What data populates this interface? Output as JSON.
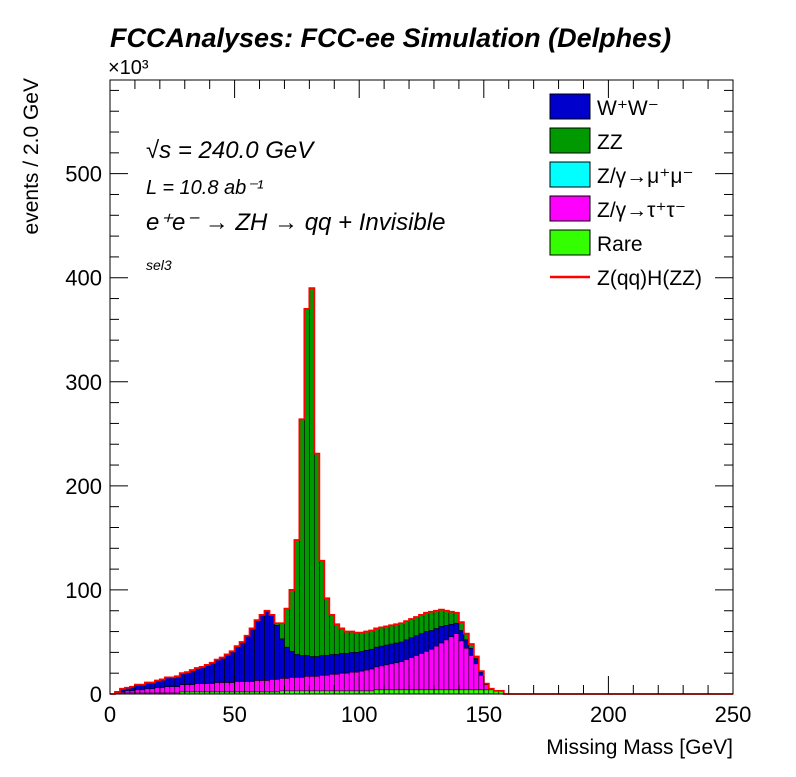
{
  "chart_data": {
    "type": "area",
    "title": "FCCAnalyses: FCC-ee Simulation (Delphes)",
    "xlabel": "Missing Mass [GeV]",
    "ylabel": "events / 2.0 GeV",
    "y_multiplier": "×10³",
    "xlim": [
      0,
      250
    ],
    "ylim": [
      0,
      590
    ],
    "x_ticks": [
      0,
      50,
      100,
      150,
      200,
      250
    ],
    "y_ticks": [
      0,
      100,
      200,
      300,
      400,
      500
    ],
    "grid": false,
    "legend_position": "top-right",
    "annotations": {
      "energy": "√s = 240.0 GeV",
      "lumi": "L = 10.8 ab⁻¹",
      "process": "e⁺e⁻ → ZH → qq + Invisible",
      "selection": "sel3"
    },
    "bin_width": 2,
    "bin_edges_start": 0,
    "series": [
      {
        "name": "Rare",
        "color": "#33ff00",
        "values": [
          0,
          0,
          1,
          1,
          1,
          1,
          1,
          1,
          1,
          1,
          1,
          1,
          1,
          1,
          2,
          2,
          2,
          2,
          2,
          2,
          2,
          2,
          2,
          2,
          2,
          2,
          2,
          2,
          2,
          2,
          2,
          2,
          2,
          2,
          3,
          3,
          3,
          3,
          3,
          3,
          3,
          3,
          3,
          3,
          3,
          3,
          3,
          3,
          3,
          3,
          3,
          3,
          3,
          4,
          4,
          4,
          4,
          4,
          4,
          4,
          4,
          4,
          4,
          4,
          4,
          4,
          4,
          4,
          4,
          4,
          4,
          4,
          4,
          4,
          4,
          4,
          4,
          3,
          3,
          0,
          0,
          0,
          0,
          0,
          0,
          0,
          0,
          0,
          0,
          0,
          0,
          0,
          0,
          0,
          0,
          0,
          0,
          0,
          0,
          0,
          0,
          0,
          0,
          0,
          0,
          0,
          0,
          0,
          0,
          0,
          0,
          0,
          0,
          0,
          0,
          0,
          0,
          0,
          0,
          0,
          0,
          0,
          0,
          0,
          0
        ]
      },
      {
        "name": "Z/γ→τ⁺τ⁻",
        "color": "#ff00ff",
        "values": [
          0,
          1,
          1,
          2,
          2,
          3,
          3,
          4,
          4,
          5,
          5,
          6,
          6,
          6,
          7,
          7,
          7,
          8,
          8,
          8,
          8,
          9,
          9,
          9,
          9,
          10,
          10,
          10,
          10,
          11,
          11,
          11,
          12,
          12,
          12,
          12,
          13,
          13,
          13,
          14,
          14,
          14,
          15,
          15,
          16,
          16,
          17,
          17,
          18,
          18,
          19,
          20,
          21,
          22,
          23,
          24,
          25,
          26,
          27,
          29,
          31,
          33,
          35,
          37,
          39,
          42,
          45,
          48,
          51,
          54,
          47,
          40,
          33,
          25,
          14,
          5,
          1,
          0,
          0,
          0,
          0,
          0,
          0,
          0,
          0,
          0,
          0,
          0,
          0,
          0,
          0,
          0,
          0,
          0,
          0,
          0,
          0,
          0,
          0,
          0,
          0,
          0,
          0,
          0,
          0,
          0,
          0,
          0,
          0,
          0,
          0,
          0,
          0,
          0,
          0,
          0,
          0,
          0,
          0,
          0,
          0,
          0,
          0,
          0,
          0
        ]
      },
      {
        "name": "Z/γ→μ⁺μ⁻",
        "color": "#00ffff",
        "values": [
          0,
          0,
          0,
          0,
          0,
          0,
          0,
          0,
          0,
          0,
          0,
          0,
          0,
          0,
          0,
          0,
          0,
          0,
          0,
          0,
          0,
          0,
          0,
          0,
          0,
          0,
          0,
          0,
          0,
          0,
          0,
          0,
          0,
          0,
          0,
          0,
          0,
          0,
          0,
          0,
          0,
          0,
          0,
          0,
          0,
          0,
          0,
          0,
          0,
          0,
          0,
          0,
          0,
          0,
          0,
          0,
          0,
          0,
          0,
          0,
          0,
          0,
          0,
          0,
          0,
          0,
          0,
          0,
          0,
          0,
          0,
          0,
          0,
          0,
          0,
          0,
          0,
          0,
          0,
          0,
          0,
          0,
          0,
          0,
          0,
          0,
          0,
          0,
          0,
          0,
          0,
          0,
          0,
          0,
          0,
          0,
          0,
          0,
          0,
          0,
          0,
          0,
          0,
          0,
          0,
          0,
          0,
          0,
          0,
          0,
          0,
          0,
          0,
          0,
          0,
          0,
          0,
          0,
          0,
          0,
          0,
          0,
          0,
          0,
          0
        ]
      },
      {
        "name": "W⁺W⁻",
        "color": "#0000cc",
        "values": [
          0,
          1,
          3,
          3,
          4,
          5,
          5,
          6,
          6,
          7,
          8,
          9,
          9,
          10,
          11,
          12,
          14,
          15,
          16,
          18,
          20,
          22,
          24,
          27,
          30,
          34,
          38,
          44,
          51,
          58,
          63,
          67,
          62,
          52,
          38,
          30,
          25,
          22,
          21,
          20,
          19,
          19,
          19,
          19,
          19,
          19,
          19,
          19,
          19,
          19,
          19,
          19,
          19,
          19,
          19,
          19,
          19,
          19,
          19,
          19,
          19,
          19,
          19,
          19,
          18,
          17,
          16,
          14,
          12,
          10,
          10,
          8,
          7,
          5,
          3,
          1,
          0,
          0,
          0,
          0,
          0,
          0,
          0,
          0,
          0,
          0,
          0,
          0,
          0,
          0,
          0,
          0,
          0,
          0,
          0,
          0,
          0,
          0,
          0,
          0,
          0,
          0,
          0,
          0,
          0,
          0,
          0,
          0,
          0,
          0,
          0,
          0,
          0,
          0,
          0,
          0,
          0,
          0,
          0,
          0,
          0,
          0,
          0,
          0,
          0
        ]
      },
      {
        "name": "ZZ",
        "color": "#009900",
        "values": [
          0,
          0,
          0,
          0,
          0,
          0,
          0,
          0,
          0,
          0,
          0,
          0,
          0,
          0,
          0,
          0,
          0,
          0,
          0,
          0,
          0,
          0,
          0,
          0,
          0,
          0,
          0,
          0,
          0,
          0,
          0,
          0,
          0,
          2,
          15,
          37,
          59,
          110,
          227,
          333,
          354,
          195,
          91,
          55,
          38,
          29,
          24,
          21,
          20,
          19,
          18,
          18,
          18,
          18,
          18,
          18,
          18,
          18,
          18,
          18,
          18,
          18,
          18,
          18,
          18,
          17,
          16,
          14,
          12,
          10,
          8,
          6,
          4,
          2,
          1,
          0,
          0,
          0,
          0,
          0,
          0,
          0,
          0,
          0,
          0,
          0,
          0,
          0,
          0,
          0,
          0,
          0,
          0,
          0,
          0,
          0,
          0,
          0,
          0,
          0,
          0,
          0,
          0,
          0,
          0,
          0,
          0,
          0,
          0,
          0,
          0,
          0,
          0,
          0,
          0,
          0,
          0,
          0,
          0,
          0,
          0,
          0,
          0,
          0,
          0
        ]
      },
      {
        "name": "Z(qq)H(ZZ)",
        "color": "#ff0000",
        "style": "line",
        "values": [
          0,
          0,
          0,
          0,
          0,
          0,
          0,
          0,
          0,
          0,
          0,
          0,
          0,
          0,
          0,
          0,
          0,
          0,
          0,
          0,
          0,
          0,
          0,
          0,
          0,
          0,
          0,
          0,
          0,
          0,
          0,
          0,
          0,
          0,
          0,
          0,
          0,
          0,
          0,
          0,
          0,
          0,
          0,
          0,
          0,
          0,
          0,
          0,
          0,
          0,
          0,
          0,
          0,
          0,
          0,
          0,
          0,
          0,
          0,
          0,
          0,
          0,
          0,
          0,
          0,
          0,
          0,
          0,
          0,
          0,
          0,
          0,
          0,
          0,
          0,
          0,
          0,
          0,
          0,
          0,
          0,
          0,
          0,
          0,
          0,
          0,
          0,
          0,
          0,
          0,
          0,
          0,
          0,
          0,
          0,
          0,
          0,
          0,
          0,
          0,
          0,
          0,
          0,
          0,
          0,
          0,
          0,
          0,
          0,
          0,
          0,
          0,
          0,
          0,
          0,
          0,
          0,
          0,
          0,
          0,
          0,
          0,
          0,
          0,
          0
        ]
      }
    ],
    "legend_order": [
      "W⁺W⁻",
      "ZZ",
      "Z/γ→μ⁺μ⁻",
      "Z/γ→τ⁺τ⁻",
      "Rare",
      "Z(qq)H(ZZ)"
    ]
  }
}
